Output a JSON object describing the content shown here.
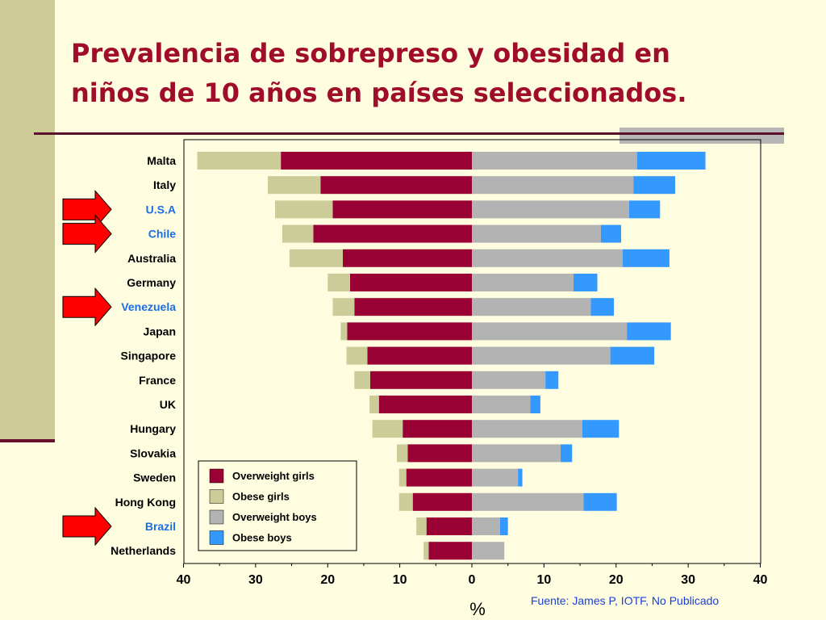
{
  "title": {
    "line1": "Prevalencia de sobrepreso y obesidad en",
    "line2": "niños de 10 años en países seleccionados."
  },
  "source": "Fuente: James P, IOTF, No Publicado",
  "colors": {
    "overweight_girls": "#990033",
    "obese_girls": "#cccc99",
    "overweight_boys": "#b3b3b3",
    "obese_boys": "#3399ff",
    "highlight_label": "#1a6fe6",
    "arrow": "#ff0000"
  },
  "highlighted_countries": [
    "U.S.A",
    "Chile",
    "Venezuela",
    "Brazil"
  ],
  "chart_data": {
    "type": "bar",
    "orientation": "horizontal-diverging",
    "xlabel": "%",
    "xlim": [
      -40,
      40
    ],
    "xticks": [
      -40,
      -30,
      -20,
      -10,
      0,
      10,
      20,
      30,
      40
    ],
    "xtick_labels": [
      "40",
      "30",
      "20",
      "10",
      "0",
      "10",
      "20",
      "30",
      "40"
    ],
    "stacking": "girls extend left of 0 (overweight then obese), boys extend right of 0 (overweight then obese); values are cumulative segment lengths in %",
    "categories": [
      "Malta",
      "Italy",
      "U.S.A",
      "Chile",
      "Australia",
      "Germany",
      "Venezuela",
      "Japan",
      "Singapore",
      "France",
      "UK",
      "Hungary",
      "Slovakia",
      "Sweden",
      "Hong Kong",
      "Brazil",
      "Netherlands"
    ],
    "series": [
      {
        "name": "Overweight girls",
        "values": [
          26.5,
          21.0,
          19.3,
          22.0,
          17.9,
          16.9,
          16.3,
          17.3,
          14.5,
          14.1,
          12.9,
          9.6,
          8.9,
          9.1,
          8.2,
          6.3,
          6.0
        ]
      },
      {
        "name": "Obese girls",
        "values": [
          11.6,
          7.3,
          8.0,
          4.3,
          7.4,
          3.1,
          3.0,
          0.9,
          2.9,
          2.2,
          1.3,
          4.2,
          1.5,
          1.0,
          1.9,
          1.4,
          0.7
        ]
      },
      {
        "name": "Overweight boys",
        "values": [
          22.9,
          22.4,
          21.8,
          17.9,
          20.9,
          14.1,
          16.5,
          21.5,
          19.2,
          10.2,
          8.1,
          15.3,
          12.3,
          6.4,
          15.5,
          3.9,
          4.5
        ]
      },
      {
        "name": "Obese boys",
        "values": [
          9.5,
          5.8,
          4.3,
          2.8,
          6.5,
          3.3,
          3.2,
          6.1,
          6.1,
          1.8,
          1.4,
          5.1,
          1.6,
          0.6,
          4.6,
          1.1,
          0.0
        ]
      }
    ],
    "legend": [
      "Overweight girls",
      "Obese girls",
      "Overweight boys",
      "Obese boys"
    ],
    "legend_position": "bottom-left inside plot",
    "grid": false
  }
}
